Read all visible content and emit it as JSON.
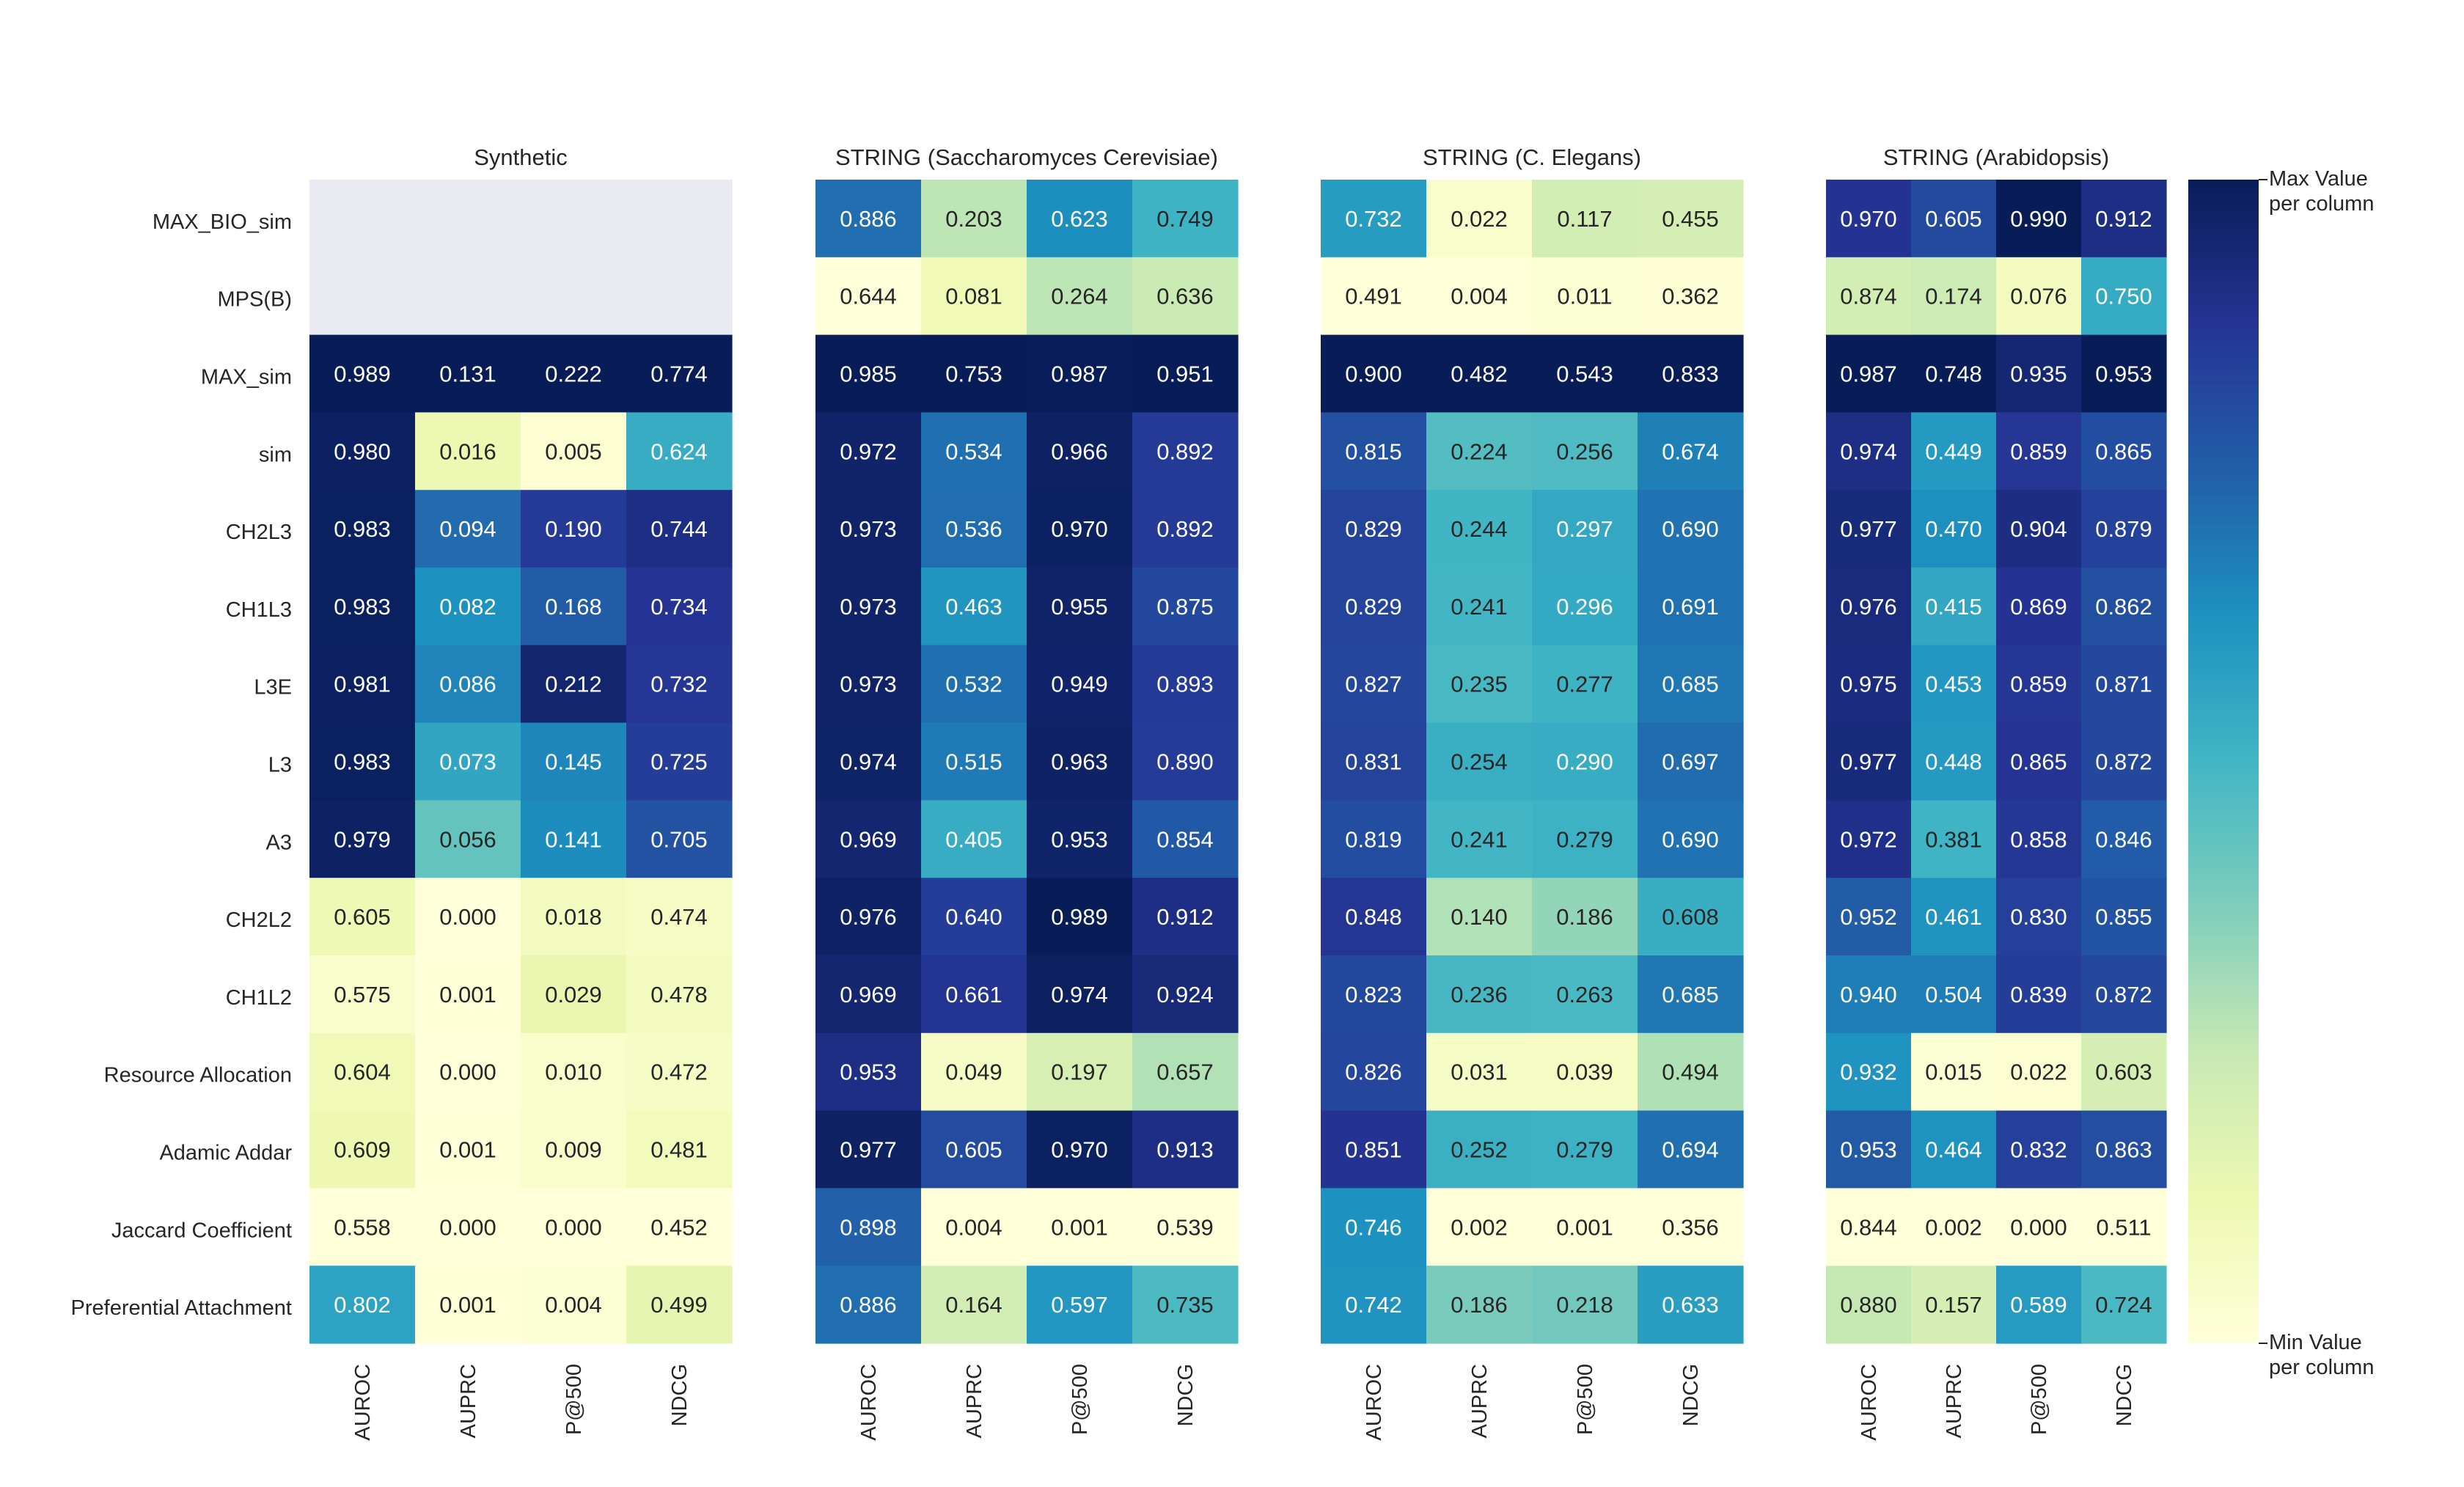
{
  "chart_data": {
    "type": "heatmap",
    "row_labels": [
      "MAX_BIO_sim",
      "MPS(B)",
      "MAX_sim",
      "sim",
      "CH2L3",
      "CH1L3",
      "L3E",
      "L3",
      "A3",
      "CH2L2",
      "CH1L2",
      "Resource Allocation",
      "Adamic Addar",
      "Jaccard Coefficient",
      "Preferential Attachment"
    ],
    "column_labels": [
      "AUROC",
      "AUPRC",
      "P@500",
      "NDCG"
    ],
    "color_scale": "YlGnBu, normalized per column",
    "missing_color": "#eaeaf2",
    "colorbar": {
      "max_label": [
        "Max Value",
        "per column"
      ],
      "min_label": [
        "Min Value",
        "per column"
      ],
      "colors": [
        "#ffffd9",
        "#edf8b1",
        "#c7e9b4",
        "#7fcdbb",
        "#41b6c4",
        "#1d91c0",
        "#225ea8",
        "#253494",
        "#081d58"
      ]
    },
    "panels": [
      {
        "title": "Synthetic",
        "values": [
          [
            null,
            null,
            null,
            null
          ],
          [
            null,
            null,
            null,
            null
          ],
          [
            0.989,
            0.131,
            0.222,
            0.774
          ],
          [
            0.98,
            0.016,
            0.005,
            0.624
          ],
          [
            0.983,
            0.094,
            0.19,
            0.744
          ],
          [
            0.983,
            0.082,
            0.168,
            0.734
          ],
          [
            0.981,
            0.086,
            0.212,
            0.732
          ],
          [
            0.983,
            0.073,
            0.145,
            0.725
          ],
          [
            0.979,
            0.056,
            0.141,
            0.705
          ],
          [
            0.605,
            0.0,
            0.018,
            0.474
          ],
          [
            0.575,
            0.001,
            0.029,
            0.478
          ],
          [
            0.604,
            0.0,
            0.01,
            0.472
          ],
          [
            0.609,
            0.001,
            0.009,
            0.481
          ],
          [
            0.558,
            0.0,
            0.0,
            0.452
          ],
          [
            0.802,
            0.001,
            0.004,
            0.499
          ]
        ]
      },
      {
        "title": "STRING (Saccharomyces Cerevisiae)",
        "values": [
          [
            0.886,
            0.203,
            0.623,
            0.749
          ],
          [
            0.644,
            0.081,
            0.264,
            0.636
          ],
          [
            0.985,
            0.753,
            0.987,
            0.951
          ],
          [
            0.972,
            0.534,
            0.966,
            0.892
          ],
          [
            0.973,
            0.536,
            0.97,
            0.892
          ],
          [
            0.973,
            0.463,
            0.955,
            0.875
          ],
          [
            0.973,
            0.532,
            0.949,
            0.893
          ],
          [
            0.974,
            0.515,
            0.963,
            0.89
          ],
          [
            0.969,
            0.405,
            0.953,
            0.854
          ],
          [
            0.976,
            0.64,
            0.989,
            0.912
          ],
          [
            0.969,
            0.661,
            0.974,
            0.924
          ],
          [
            0.953,
            0.049,
            0.197,
            0.657
          ],
          [
            0.977,
            0.605,
            0.97,
            0.913
          ],
          [
            0.898,
            0.004,
            0.001,
            0.539
          ],
          [
            0.886,
            0.164,
            0.597,
            0.735
          ]
        ]
      },
      {
        "title": "STRING (C. Elegans)",
        "values": [
          [
            0.732,
            0.022,
            0.117,
            0.455
          ],
          [
            0.491,
            0.004,
            0.011,
            0.362
          ],
          [
            0.9,
            0.482,
            0.543,
            0.833
          ],
          [
            0.815,
            0.224,
            0.256,
            0.674
          ],
          [
            0.829,
            0.244,
            0.297,
            0.69
          ],
          [
            0.829,
            0.241,
            0.296,
            0.691
          ],
          [
            0.827,
            0.235,
            0.277,
            0.685
          ],
          [
            0.831,
            0.254,
            0.29,
            0.697
          ],
          [
            0.819,
            0.241,
            0.279,
            0.69
          ],
          [
            0.848,
            0.14,
            0.186,
            0.608
          ],
          [
            0.823,
            0.236,
            0.263,
            0.685
          ],
          [
            0.826,
            0.031,
            0.039,
            0.494
          ],
          [
            0.851,
            0.252,
            0.279,
            0.694
          ],
          [
            0.746,
            0.002,
            0.001,
            0.356
          ],
          [
            0.742,
            0.186,
            0.218,
            0.633
          ]
        ]
      },
      {
        "title": "STRING (Arabidopsis)",
        "values": [
          [
            0.97,
            0.605,
            0.99,
            0.912
          ],
          [
            0.874,
            0.174,
            0.076,
            0.75
          ],
          [
            0.987,
            0.748,
            0.935,
            0.953
          ],
          [
            0.974,
            0.449,
            0.859,
            0.865
          ],
          [
            0.977,
            0.47,
            0.904,
            0.879
          ],
          [
            0.976,
            0.415,
            0.869,
            0.862
          ],
          [
            0.975,
            0.453,
            0.859,
            0.871
          ],
          [
            0.977,
            0.448,
            0.865,
            0.872
          ],
          [
            0.972,
            0.381,
            0.858,
            0.846
          ],
          [
            0.952,
            0.461,
            0.83,
            0.855
          ],
          [
            0.94,
            0.504,
            0.839,
            0.872
          ],
          [
            0.932,
            0.015,
            0.022,
            0.603
          ],
          [
            0.953,
            0.464,
            0.832,
            0.863
          ],
          [
            0.844,
            0.002,
            0.0,
            0.511
          ],
          [
            0.88,
            0.157,
            0.589,
            0.724
          ]
        ]
      }
    ]
  }
}
